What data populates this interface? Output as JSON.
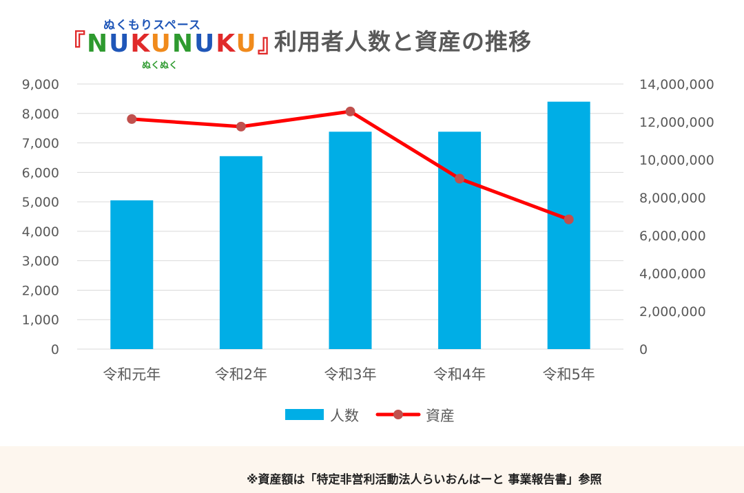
{
  "logo": {
    "top_text": "ぬくもりスペース",
    "bracket_open": "『",
    "letters": [
      "N",
      "U",
      "K",
      "U",
      "N",
      "U",
      "K",
      "U"
    ],
    "bracket_close": "』",
    "sub_text": "ぬくぬく"
  },
  "chart_data": {
    "type": "bar",
    "title": "利用者人数と資産の推移",
    "categories": [
      "令和元年",
      "令和2年",
      "令和3年",
      "令和4年",
      "令和5年"
    ],
    "series": [
      {
        "name": "人数",
        "type": "bar",
        "axis": "left",
        "color": "#00aee6",
        "values": [
          5050,
          6550,
          7380,
          7380,
          8400
        ]
      },
      {
        "name": "資産",
        "type": "line",
        "axis": "right",
        "color": "#ff0000",
        "marker_color": "#c0504d",
        "values": [
          12150000,
          11750000,
          12550000,
          9000000,
          6850000
        ]
      }
    ],
    "y_left": {
      "min": 0,
      "max": 9000,
      "step": 1000,
      "ticks": [
        "0",
        "1,000",
        "2,000",
        "3,000",
        "4,000",
        "5,000",
        "6,000",
        "7,000",
        "8,000",
        "9,000"
      ]
    },
    "y_right": {
      "min": 0,
      "max": 14000000,
      "step": 2000000,
      "ticks": [
        "0",
        "2,000,000",
        "4,000,000",
        "6,000,000",
        "8,000,000",
        "10,000,000",
        "12,000,000",
        "14,000,000"
      ]
    },
    "grid": true,
    "legend_position": "bottom"
  },
  "footnote": "※資産額は「特定非営利活動法人らいおんはーと 事業報告書」参照"
}
